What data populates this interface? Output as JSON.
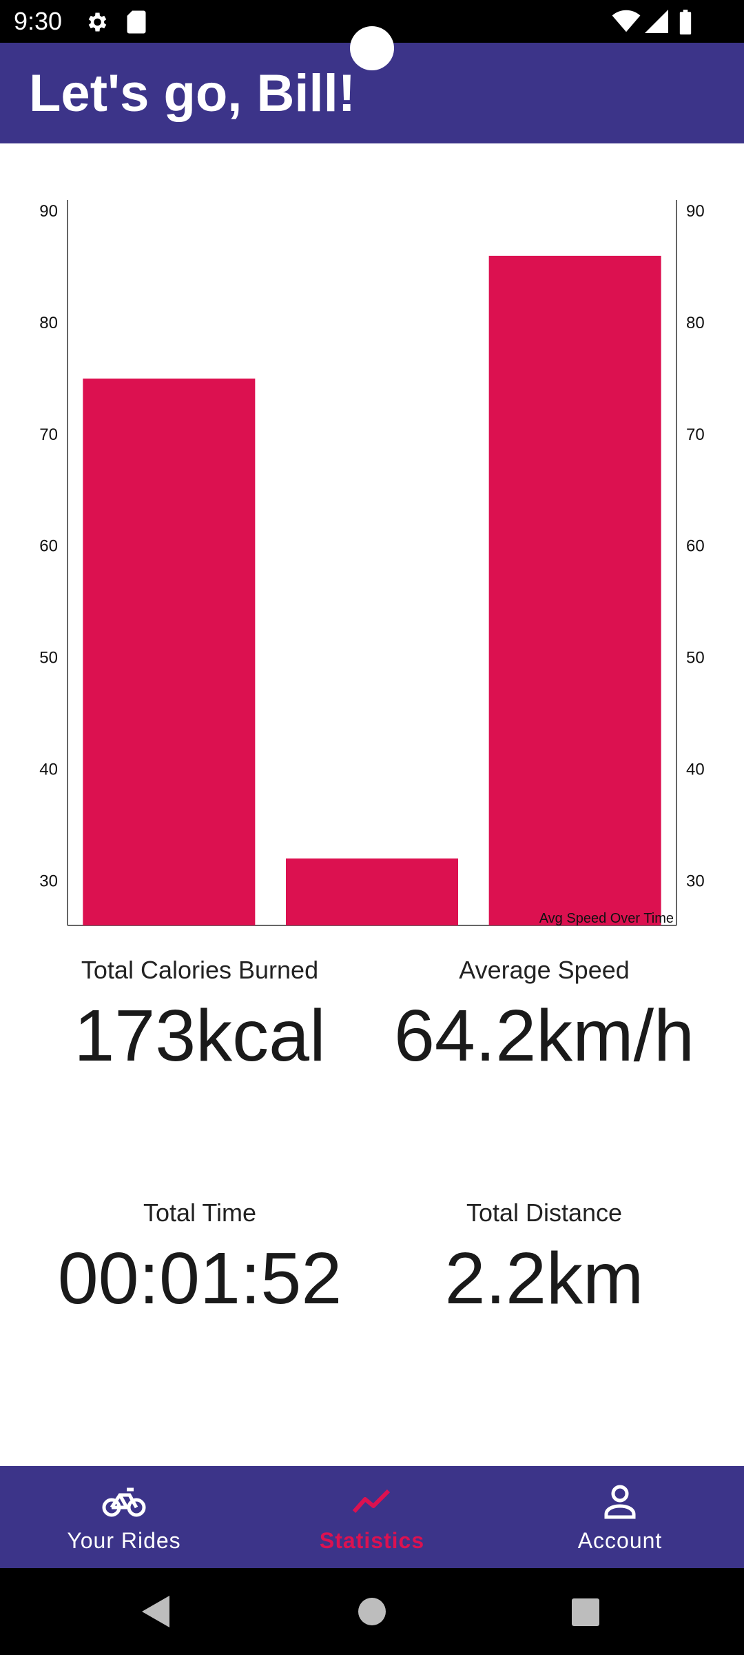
{
  "status_bar": {
    "time": "9:30"
  },
  "app_bar": {
    "title": "Let's go, Bill!"
  },
  "chart_data": {
    "type": "bar",
    "legend": "Avg Speed Over Time",
    "values": [
      75,
      32,
      86
    ],
    "ylim": [
      26,
      91
    ],
    "yticks": [
      30,
      40,
      50,
      60,
      70,
      80,
      90
    ],
    "dual_axis": true,
    "grid": false,
    "color": "#dc1150"
  },
  "stats": {
    "calories": {
      "label": "Total Calories Burned",
      "value": "173kcal"
    },
    "speed": {
      "label": "Average Speed",
      "value": "64.2km/h"
    },
    "time": {
      "label": "Total Time",
      "value": "00:01:52"
    },
    "distance": {
      "label": "Total Distance",
      "value": "2.2km"
    }
  },
  "bottom_nav": {
    "items": [
      {
        "label": "Your Rides",
        "icon": "bike-icon"
      },
      {
        "label": "Statistics",
        "icon": "trending-up-icon",
        "active": true
      },
      {
        "label": "Account",
        "icon": "person-icon"
      }
    ]
  },
  "colors": {
    "primary": "#3c3489",
    "accent": "#dc1150"
  }
}
